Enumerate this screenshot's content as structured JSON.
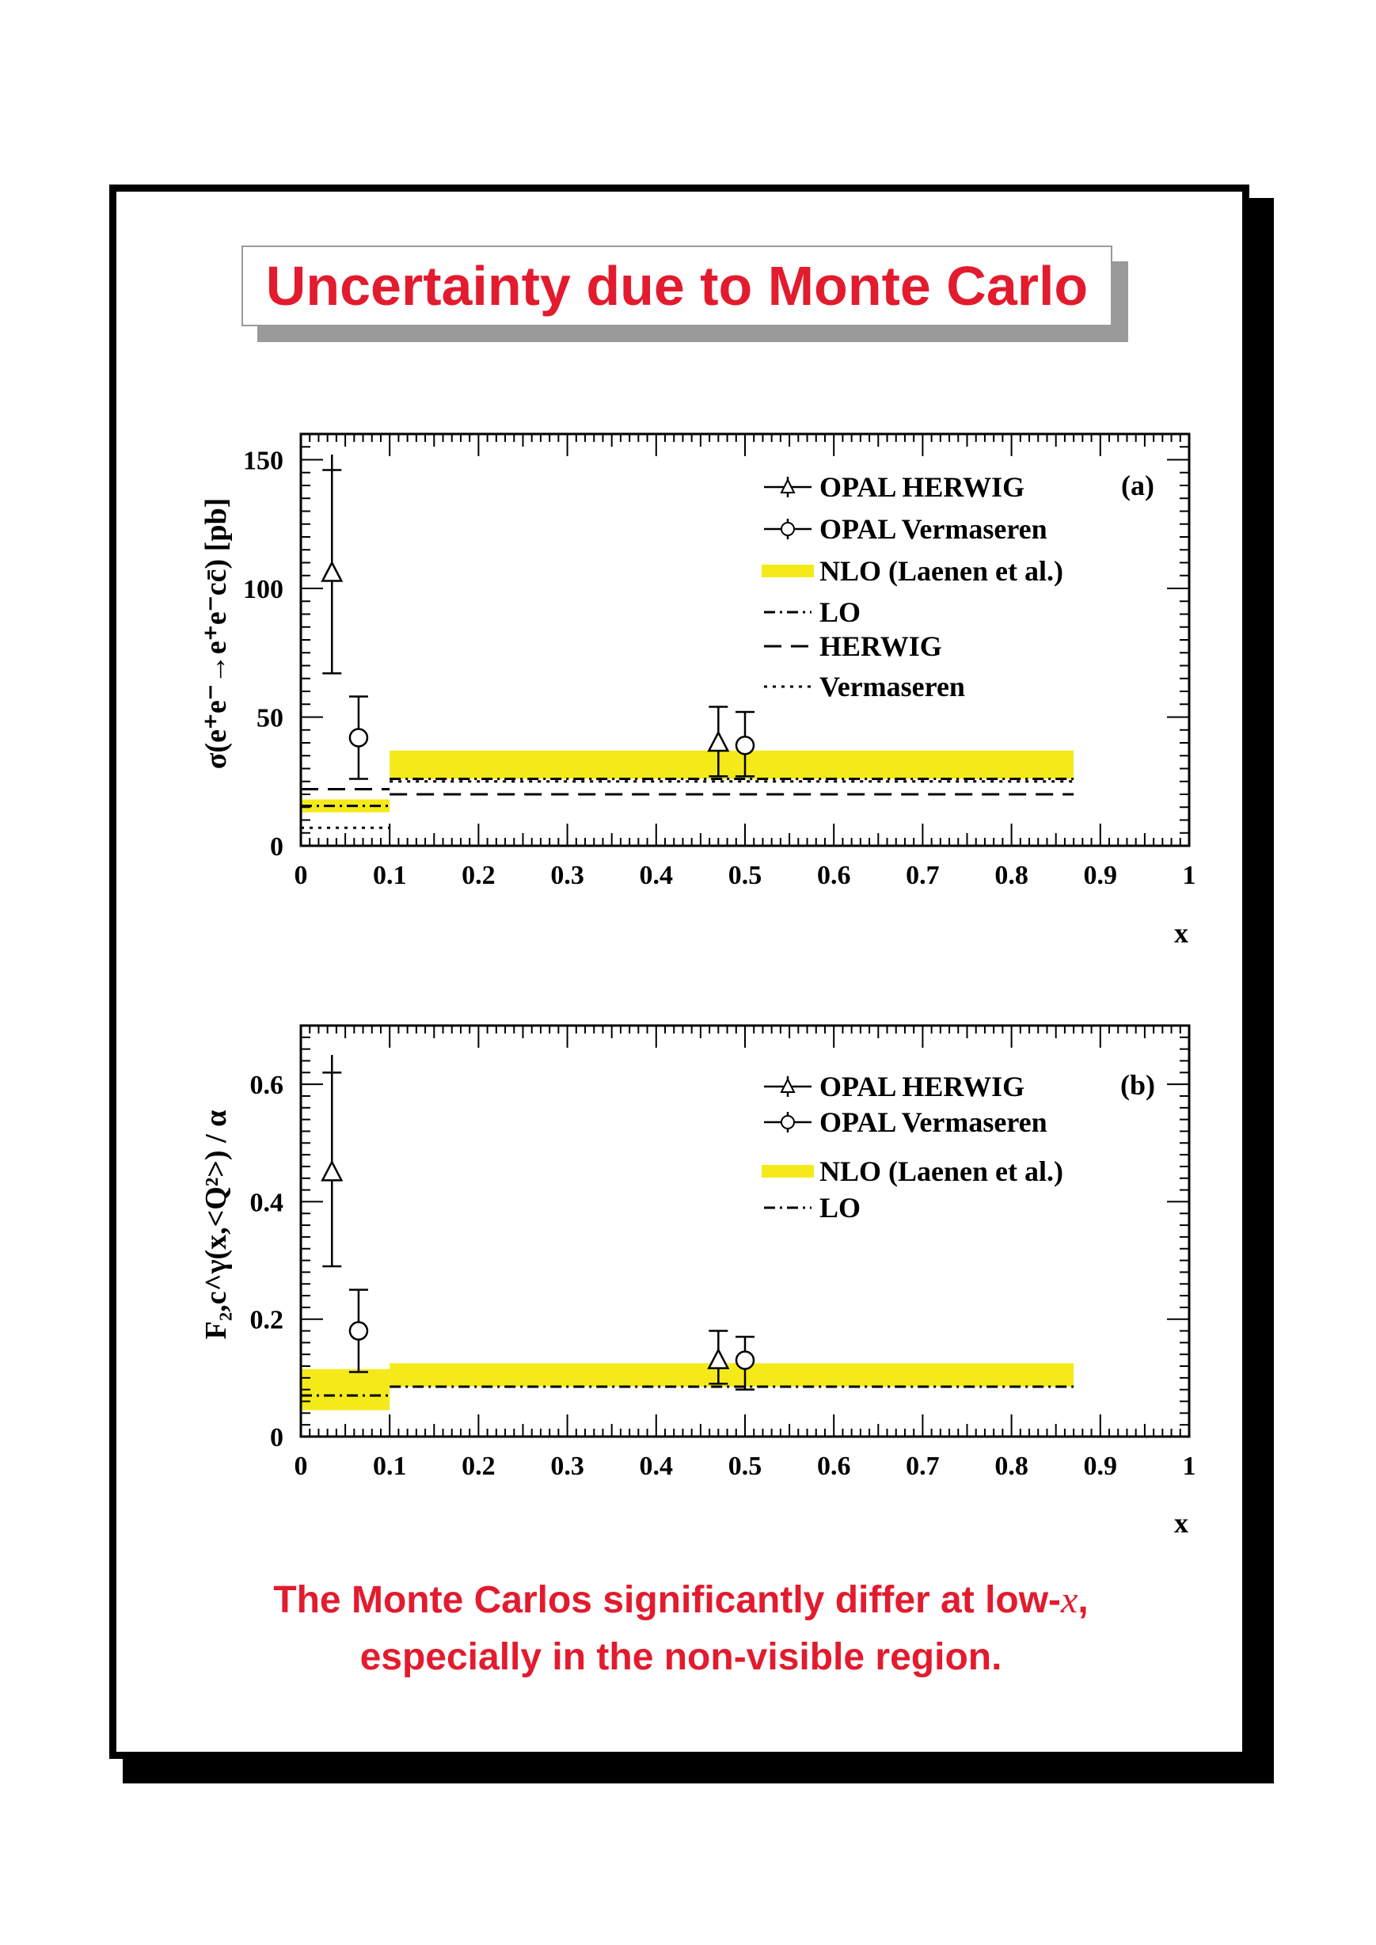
{
  "slide": {
    "title": "Uncertainty due to Monte Carlo",
    "footer_line1_pre": "The Monte Carlos significantly differ at low-",
    "footer_line1_var": "x",
    "footer_line1_post": ",",
    "footer_line2": "especially in the non-visible region."
  },
  "colors": {
    "accent": "#e21b2e",
    "nlo_band": "#f4ea1a",
    "frame": "#000000",
    "title_shadow": "#9a9a9a"
  },
  "chart_data": [
    {
      "type": "scatter",
      "panel_label": "(a)",
      "xlabel": "x",
      "ylabel": "σ(e⁺e⁻→e⁺e⁻cc̄) [pb]",
      "xlim": [
        0,
        1
      ],
      "ylim": [
        0,
        160
      ],
      "x_ticks": [
        "0",
        "0.1",
        "0.2",
        "0.3",
        "0.4",
        "0.5",
        "0.6",
        "0.7",
        "0.8",
        "0.9",
        "1"
      ],
      "y_ticks": [
        {
          "v": 0,
          "t": "0"
        },
        {
          "v": 50,
          "t": "50"
        },
        {
          "v": 100,
          "t": "100"
        },
        {
          "v": 150,
          "t": "150"
        }
      ],
      "legend": [
        {
          "name": "OPAL HERWIG",
          "kind": "triangle"
        },
        {
          "name": "OPAL Vermaseren",
          "kind": "circle"
        },
        {
          "name": "NLO (Laenen et al.)",
          "kind": "band"
        },
        {
          "name": "LO",
          "kind": "dashdot"
        },
        {
          "name": "HERWIG",
          "kind": "dashed"
        },
        {
          "name": "Vermaseren",
          "kind": "dotted"
        }
      ],
      "points": [
        {
          "series": "OPAL HERWIG",
          "marker": "triangle",
          "x": 0.035,
          "y": 106,
          "ylow": 67,
          "yhigh": 146,
          "yhigh_outer": 152
        },
        {
          "series": "OPAL Vermaseren",
          "marker": "circle",
          "x": 0.065,
          "y": 42,
          "ylow": 26,
          "yhigh": 58
        },
        {
          "series": "OPAL HERWIG",
          "marker": "triangle",
          "x": 0.47,
          "y": 40,
          "ylow": 27,
          "yhigh": 54
        },
        {
          "series": "OPAL Vermaseren",
          "marker": "circle",
          "x": 0.5,
          "y": 39,
          "ylow": 27,
          "yhigh": 52
        }
      ],
      "nlo_band": [
        {
          "x0": 0.0,
          "x1": 0.1,
          "y0": 13,
          "y1": 18
        },
        {
          "x0": 0.1,
          "x1": 0.87,
          "y0": 26,
          "y1": 37
        }
      ],
      "lines": [
        {
          "name": "LO",
          "style": "dashdot",
          "segments": [
            {
              "x0": 0.0,
              "x1": 0.1,
              "y": 15.5
            },
            {
              "x0": 0.1,
              "x1": 0.87,
              "y": 26
            }
          ]
        },
        {
          "name": "HERWIG",
          "style": "dashed",
          "segments": [
            {
              "x0": 0.0,
              "x1": 0.1,
              "y": 22
            },
            {
              "x0": 0.1,
              "x1": 0.87,
              "y": 20
            }
          ]
        },
        {
          "name": "Vermaseren",
          "style": "dotted",
          "segments": [
            {
              "x0": 0.0,
              "x1": 0.1,
              "y": 7
            },
            {
              "x0": 0.1,
              "x1": 0.87,
              "y": 25
            }
          ]
        }
      ]
    },
    {
      "type": "scatter",
      "panel_label": "(b)",
      "xlabel": "x",
      "ylabel": "F₂,c^γ(x,<Q²>) / α",
      "xlim": [
        0,
        1
      ],
      "ylim": [
        0,
        0.7
      ],
      "x_ticks": [
        "0",
        "0.1",
        "0.2",
        "0.3",
        "0.4",
        "0.5",
        "0.6",
        "0.7",
        "0.8",
        "0.9",
        "1"
      ],
      "y_ticks": [
        {
          "v": 0,
          "t": "0"
        },
        {
          "v": 0.2,
          "t": "0.2"
        },
        {
          "v": 0.4,
          "t": "0.4"
        },
        {
          "v": 0.6,
          "t": "0.6"
        }
      ],
      "legend": [
        {
          "name": "OPAL HERWIG",
          "kind": "triangle"
        },
        {
          "name": "OPAL Vermaseren",
          "kind": "circle"
        },
        {
          "name": "NLO (Laenen et al.)",
          "kind": "band"
        },
        {
          "name": "LO",
          "kind": "dashdot"
        }
      ],
      "points": [
        {
          "series": "OPAL HERWIG",
          "marker": "triangle",
          "x": 0.035,
          "y": 0.45,
          "ylow": 0.29,
          "yhigh": 0.62,
          "yhigh_outer": 0.65
        },
        {
          "series": "OPAL Vermaseren",
          "marker": "circle",
          "x": 0.065,
          "y": 0.18,
          "ylow": 0.11,
          "yhigh": 0.25
        },
        {
          "series": "OPAL HERWIG",
          "marker": "triangle",
          "x": 0.47,
          "y": 0.13,
          "ylow": 0.09,
          "yhigh": 0.18
        },
        {
          "series": "OPAL Vermaseren",
          "marker": "circle",
          "x": 0.5,
          "y": 0.13,
          "ylow": 0.08,
          "yhigh": 0.17
        }
      ],
      "nlo_band": [
        {
          "x0": 0.0,
          "x1": 0.1,
          "y0": 0.045,
          "y1": 0.115
        },
        {
          "x0": 0.1,
          "x1": 0.87,
          "y0": 0.085,
          "y1": 0.125
        }
      ],
      "lines": [
        {
          "name": "LO",
          "style": "dashdot",
          "segments": [
            {
              "x0": 0.0,
              "x1": 0.1,
              "y": 0.07
            },
            {
              "x0": 0.1,
              "x1": 0.87,
              "y": 0.085
            }
          ]
        }
      ]
    }
  ]
}
